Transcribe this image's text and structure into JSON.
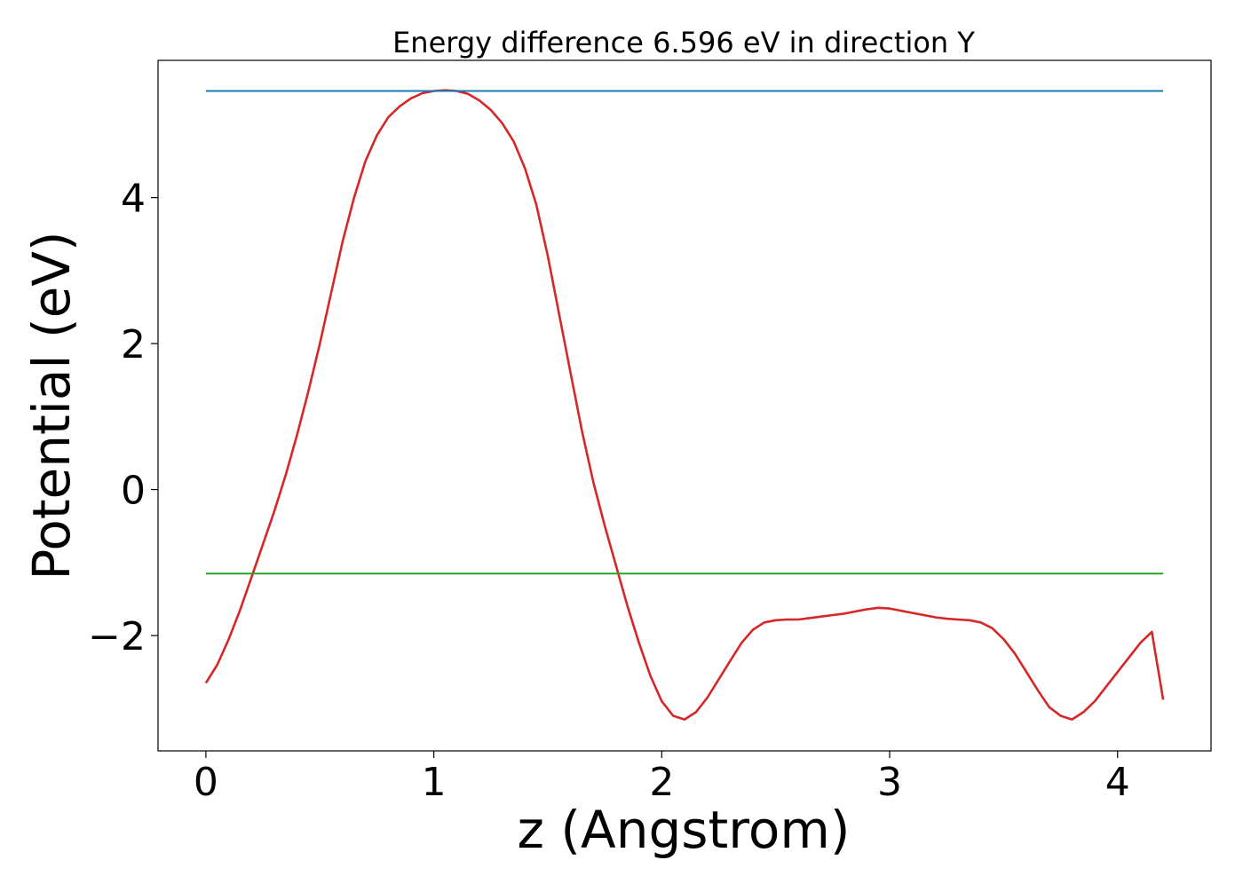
{
  "chart_data": {
    "type": "line",
    "title": "Energy difference 6.596 eV in direction Y",
    "xlabel": "z (Angstrom)",
    "ylabel": "Potential (eV)",
    "xlim": [
      -0.21,
      4.41
    ],
    "ylim": [
      -3.58,
      5.88
    ],
    "xticks": [
      0,
      1,
      2,
      3,
      4
    ],
    "xtick_labels": [
      "0",
      "1",
      "2",
      "3",
      "4"
    ],
    "yticks": [
      -2,
      0,
      2,
      4
    ],
    "ytick_labels": [
      "−2",
      "0",
      "2",
      "4"
    ],
    "grid": false,
    "legend": "none",
    "series": [
      {
        "color": "#d62728",
        "x": [
          0.0,
          0.05,
          0.1,
          0.15,
          0.2,
          0.25,
          0.3,
          0.35,
          0.4,
          0.45,
          0.5,
          0.55,
          0.6,
          0.65,
          0.7,
          0.75,
          0.8,
          0.85,
          0.9,
          0.95,
          1.0,
          1.05,
          1.1,
          1.15,
          1.2,
          1.25,
          1.3,
          1.35,
          1.4,
          1.45,
          1.5,
          1.55,
          1.6,
          1.65,
          1.7,
          1.75,
          1.8,
          1.85,
          1.9,
          1.95,
          2.0,
          2.05,
          2.1,
          2.15,
          2.2,
          2.25,
          2.3,
          2.35,
          2.4,
          2.45,
          2.5,
          2.55,
          2.6,
          2.65,
          2.7,
          2.75,
          2.8,
          2.85,
          2.9,
          2.95,
          3.0,
          3.05,
          3.1,
          3.15,
          3.2,
          3.25,
          3.3,
          3.35,
          3.4,
          3.45,
          3.5,
          3.55,
          3.6,
          3.65,
          3.7,
          3.75,
          3.8,
          3.85,
          3.9,
          3.95,
          4.0,
          4.05,
          4.1,
          4.15,
          4.2
        ],
        "y": [
          -2.65,
          -2.4,
          -2.05,
          -1.65,
          -1.2,
          -0.75,
          -0.3,
          0.2,
          0.75,
          1.35,
          2.0,
          2.7,
          3.4,
          4.0,
          4.5,
          4.85,
          5.1,
          5.25,
          5.36,
          5.43,
          5.46,
          5.47,
          5.46,
          5.42,
          5.33,
          5.2,
          5.02,
          4.77,
          4.4,
          3.9,
          3.2,
          2.4,
          1.6,
          0.8,
          0.1,
          -0.5,
          -1.05,
          -1.6,
          -2.1,
          -2.55,
          -2.9,
          -3.1,
          -3.15,
          -3.05,
          -2.85,
          -2.6,
          -2.35,
          -2.1,
          -1.92,
          -1.82,
          -1.79,
          -1.78,
          -1.78,
          -1.76,
          -1.74,
          -1.72,
          -1.7,
          -1.67,
          -1.64,
          -1.62,
          -1.63,
          -1.66,
          -1.69,
          -1.72,
          -1.75,
          -1.77,
          -1.78,
          -1.79,
          -1.82,
          -1.9,
          -2.05,
          -2.25,
          -2.5,
          -2.75,
          -2.98,
          -3.1,
          -3.15,
          -3.05,
          -2.9,
          -2.7,
          -2.5,
          -2.3,
          -2.1,
          -1.95,
          -2.88
        ]
      },
      {
        "color": "#1f77b4",
        "x": [
          0.0,
          4.2
        ],
        "y": [
          5.46,
          5.46
        ]
      },
      {
        "color": "#2ca02c",
        "x": [
          0.0,
          4.2
        ],
        "y": [
          -1.15,
          -1.15
        ]
      }
    ]
  }
}
